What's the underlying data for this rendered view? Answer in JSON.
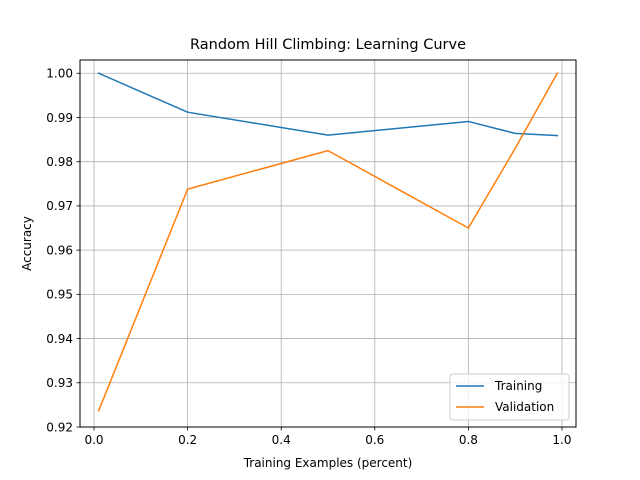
{
  "chart_data": {
    "type": "line",
    "title": "Random Hill Climbing: Learning Curve",
    "xlabel": "Training Examples (percent)",
    "ylabel": "Accuracy",
    "xlim": [
      -0.03,
      1.03
    ],
    "ylim": [
      0.92,
      1.003
    ],
    "grid": true,
    "legend_position": "lower-right",
    "x_ticks": [
      {
        "value": 0.0,
        "label": "0.0"
      },
      {
        "value": 0.2,
        "label": "0.2"
      },
      {
        "value": 0.4,
        "label": "0.4"
      },
      {
        "value": 0.6,
        "label": "0.6"
      },
      {
        "value": 0.8,
        "label": "0.8"
      },
      {
        "value": 1.0,
        "label": "1.0"
      }
    ],
    "y_ticks": [
      {
        "value": 0.92,
        "label": "0.92"
      },
      {
        "value": 0.93,
        "label": "0.93"
      },
      {
        "value": 0.94,
        "label": "0.94"
      },
      {
        "value": 0.95,
        "label": "0.95"
      },
      {
        "value": 0.96,
        "label": "0.96"
      },
      {
        "value": 0.97,
        "label": "0.97"
      },
      {
        "value": 0.98,
        "label": "0.98"
      },
      {
        "value": 0.99,
        "label": "0.99"
      },
      {
        "value": 1.0,
        "label": "1.00"
      }
    ],
    "series": [
      {
        "name": "Training",
        "color": "#1f77b4",
        "points": [
          {
            "x": 0.01,
            "y": 1.0
          },
          {
            "x": 0.2,
            "y": 0.9912
          },
          {
            "x": 0.5,
            "y": 0.986
          },
          {
            "x": 0.8,
            "y": 0.9891
          },
          {
            "x": 0.9,
            "y": 0.9864
          },
          {
            "x": 0.99,
            "y": 0.9859
          }
        ]
      },
      {
        "name": "Validation",
        "color": "#ff7f0e",
        "points": [
          {
            "x": 0.01,
            "y": 0.9237
          },
          {
            "x": 0.2,
            "y": 0.9738
          },
          {
            "x": 0.5,
            "y": 0.9825
          },
          {
            "x": 0.8,
            "y": 0.965
          },
          {
            "x": 0.9,
            "y": 0.983
          },
          {
            "x": 0.99,
            "y": 1.0
          }
        ]
      }
    ]
  }
}
